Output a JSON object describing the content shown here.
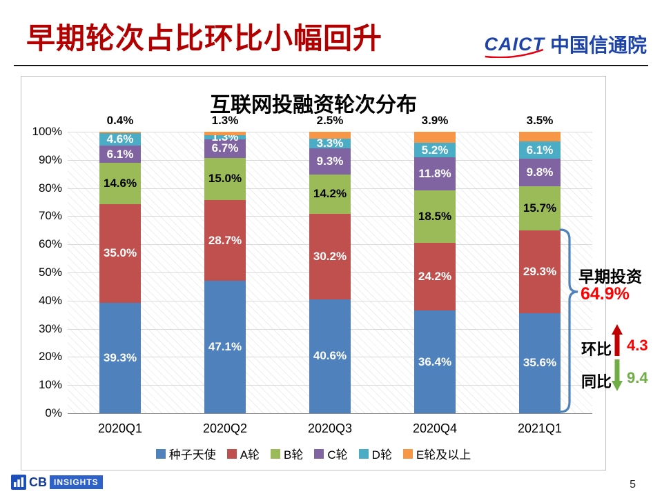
{
  "slide": {
    "title": "早期轮次占比环比小幅回升",
    "page_number": "5"
  },
  "logos": {
    "caict_en": "CAICT",
    "caict_cn": "中国信通院",
    "cb_prefix": "CB",
    "cb_suffix": "INSIGHTS"
  },
  "chart_data": {
    "type": "bar",
    "subtype": "stacked-100-percent",
    "title": "互联网投融资轮次分布",
    "xlabel": "",
    "ylabel": "",
    "categories": [
      "2020Q1",
      "2020Q2",
      "2020Q3",
      "2020Q4",
      "2021Q1"
    ],
    "series": [
      {
        "name": "种子天使",
        "color": "#4f81bd",
        "label_color": "#ffffff",
        "values": [
          39.3,
          47.1,
          40.6,
          36.4,
          35.6
        ]
      },
      {
        "name": "A轮",
        "color": "#c0504d",
        "label_color": "#ffffff",
        "values": [
          35.0,
          28.7,
          30.2,
          24.2,
          29.3
        ]
      },
      {
        "name": "B轮",
        "color": "#9bbb59",
        "label_color": "#000000",
        "values": [
          14.6,
          15.0,
          14.2,
          18.5,
          15.7
        ]
      },
      {
        "name": "C轮",
        "color": "#8064a2",
        "label_color": "#ffffff",
        "values": [
          6.1,
          6.7,
          9.3,
          11.8,
          9.8
        ]
      },
      {
        "name": "D轮",
        "color": "#4bacc6",
        "label_color": "#ffffff",
        "values": [
          4.6,
          1.3,
          3.3,
          5.2,
          6.1
        ]
      },
      {
        "name": "E轮及以上",
        "color": "#f79646",
        "label_color": "#000000",
        "label_outside": true,
        "values": [
          0.4,
          1.3,
          2.5,
          3.9,
          3.5
        ]
      }
    ],
    "y_ticks": [
      "100%",
      "90%",
      "80%",
      "70%",
      "60%",
      "50%",
      "40%",
      "30%",
      "20%",
      "10%",
      "0%"
    ],
    "ylim": [
      0,
      100
    ],
    "grid": true,
    "legend_position": "bottom"
  },
  "annotations": {
    "bracket_label": "早期投资",
    "bracket_value": "64.9%",
    "bracket_span_percent": 64.9,
    "bracket_color": "#4f81bd",
    "value_color": "#ff0000",
    "mom_label": "环比",
    "mom_value": "4.3",
    "mom_color": "#ff0000",
    "mom_arrow_color": "#c00000",
    "yoy_label": "同比",
    "yoy_value": "9.4",
    "yoy_color": "#70ad47",
    "yoy_arrow_color": "#70ad47"
  }
}
